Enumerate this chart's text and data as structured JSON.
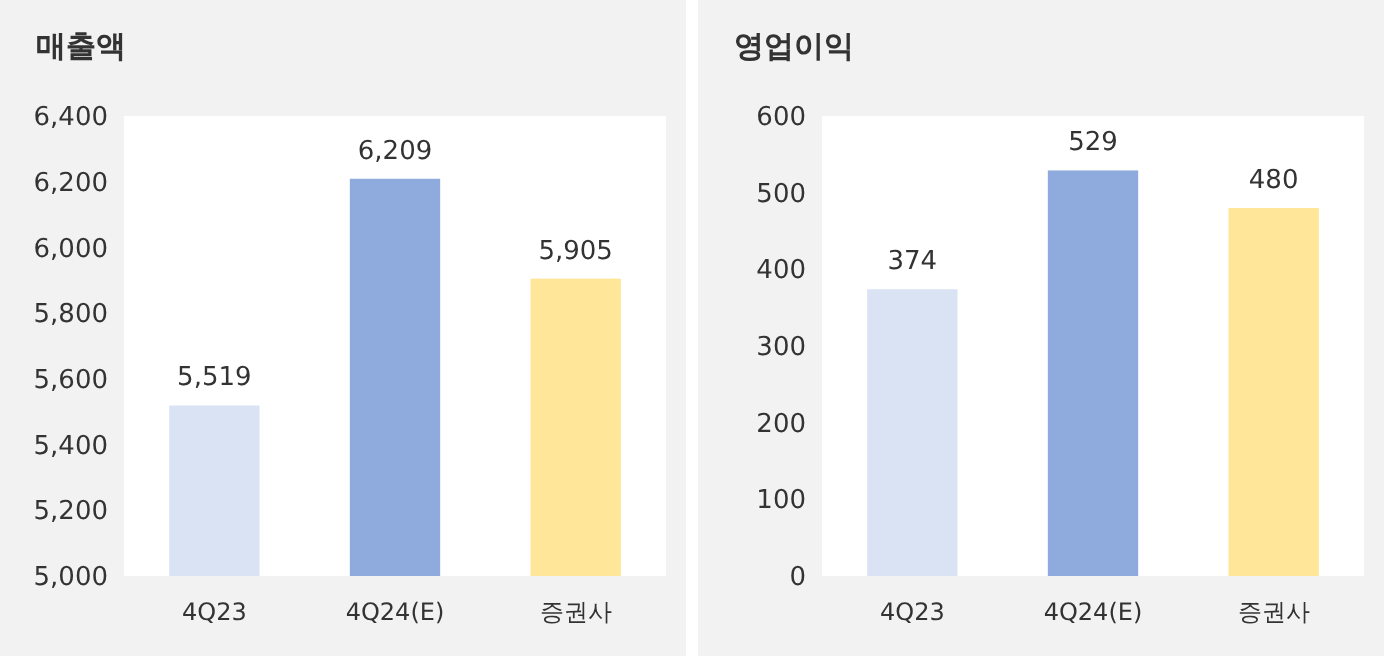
{
  "chart_data": [
    {
      "type": "bar",
      "title": "매출액",
      "categories": [
        "4Q23",
        "4Q24(E)",
        "증권사"
      ],
      "values": [
        5519,
        6209,
        5905
      ],
      "colors": [
        "#dae3f3",
        "#8faadc",
        "#ffe699"
      ],
      "ylim": [
        5000,
        6400
      ],
      "yticks": [
        {
          "value": 5000,
          "label": "5,000"
        },
        {
          "value": 5200,
          "label": "5,200"
        },
        {
          "value": 5400,
          "label": "5,400"
        },
        {
          "value": 5600,
          "label": "5,600"
        },
        {
          "value": 5800,
          "label": "5,800"
        },
        {
          "value": 6000,
          "label": "6,000"
        },
        {
          "value": 6200,
          "label": "6,200"
        },
        {
          "value": 6400,
          "label": "6,400"
        }
      ],
      "value_labels": [
        "5,519",
        "6,209",
        "5,905"
      ]
    },
    {
      "type": "bar",
      "title": "영업이익",
      "categories": [
        "4Q23",
        "4Q24(E)",
        "증권사"
      ],
      "values": [
        374,
        529,
        480
      ],
      "colors": [
        "#dae3f3",
        "#8faadc",
        "#ffe699"
      ],
      "ylim": [
        0,
        600
      ],
      "yticks": [
        0,
        100,
        200,
        300,
        400,
        500,
        600
      ],
      "data_labels": true
    }
  ]
}
